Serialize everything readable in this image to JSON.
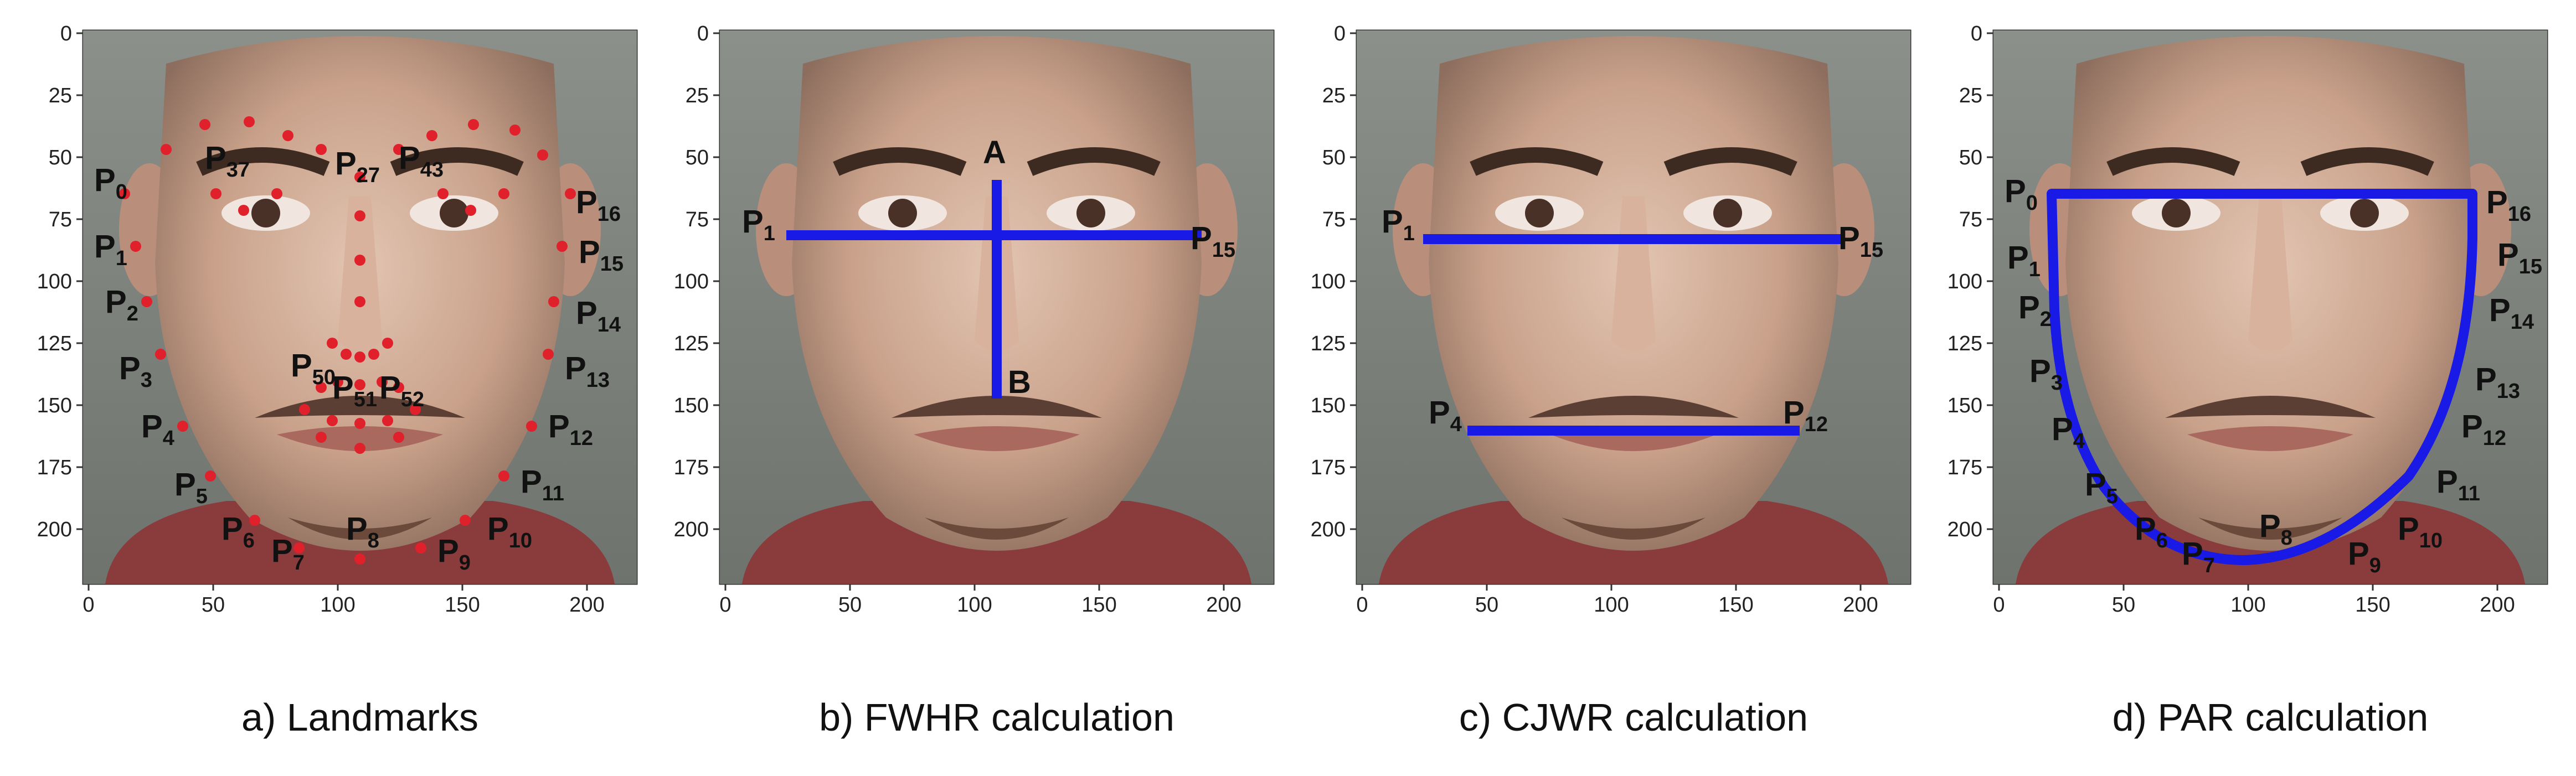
{
  "panels": [
    {
      "caption": "a) Landmarks",
      "labels": [
        {
          "base": "P",
          "sub": "0"
        },
        {
          "base": "P",
          "sub": "1"
        },
        {
          "base": "P",
          "sub": "2"
        },
        {
          "base": "P",
          "sub": "3"
        },
        {
          "base": "P",
          "sub": "4"
        },
        {
          "base": "P",
          "sub": "5"
        },
        {
          "base": "P",
          "sub": "6"
        },
        {
          "base": "P",
          "sub": "7"
        },
        {
          "base": "P",
          "sub": "8"
        },
        {
          "base": "P",
          "sub": "9"
        },
        {
          "base": "P",
          "sub": "10"
        },
        {
          "base": "P",
          "sub": "11"
        },
        {
          "base": "P",
          "sub": "12"
        },
        {
          "base": "P",
          "sub": "13"
        },
        {
          "base": "P",
          "sub": "14"
        },
        {
          "base": "P",
          "sub": "15"
        },
        {
          "base": "P",
          "sub": "16"
        },
        {
          "base": "P",
          "sub": "37"
        },
        {
          "base": "P",
          "sub": "27"
        },
        {
          "base": "P",
          "sub": "43"
        },
        {
          "base": "P",
          "sub": "50"
        },
        {
          "base": "P",
          "sub": "51"
        },
        {
          "base": "P",
          "sub": "52"
        }
      ]
    },
    {
      "caption": "b) FWHR calculation",
      "labels": [
        {
          "base": "P",
          "sub": "1"
        },
        {
          "base": "P",
          "sub": "15"
        },
        {
          "base": "A",
          "sub": ""
        },
        {
          "base": "B",
          "sub": ""
        }
      ]
    },
    {
      "caption": "c) CJWR calculation",
      "labels": [
        {
          "base": "P",
          "sub": "1"
        },
        {
          "base": "P",
          "sub": "15"
        },
        {
          "base": "P",
          "sub": "4"
        },
        {
          "base": "P",
          "sub": "12"
        }
      ]
    },
    {
      "caption": "d) PAR calculation",
      "labels": [
        {
          "base": "P",
          "sub": "0"
        },
        {
          "base": "P",
          "sub": "1"
        },
        {
          "base": "P",
          "sub": "2"
        },
        {
          "base": "P",
          "sub": "3"
        },
        {
          "base": "P",
          "sub": "4"
        },
        {
          "base": "P",
          "sub": "5"
        },
        {
          "base": "P",
          "sub": "6"
        },
        {
          "base": "P",
          "sub": "7"
        },
        {
          "base": "P",
          "sub": "8"
        },
        {
          "base": "P",
          "sub": "9"
        },
        {
          "base": "P",
          "sub": "10"
        },
        {
          "base": "P",
          "sub": "11"
        },
        {
          "base": "P",
          "sub": "12"
        },
        {
          "base": "P",
          "sub": "13"
        },
        {
          "base": "P",
          "sub": "14"
        },
        {
          "base": "P",
          "sub": "15"
        },
        {
          "base": "P",
          "sub": "16"
        }
      ]
    }
  ],
  "axes": {
    "x_ticks": [
      "0",
      "50",
      "100",
      "150",
      "200"
    ],
    "y_ticks": [
      "0",
      "25",
      "50",
      "75",
      "100",
      "125",
      "150",
      "175",
      "200"
    ]
  },
  "colors": {
    "landmark": "#e0202a",
    "measure": "#1a1ae6"
  }
}
